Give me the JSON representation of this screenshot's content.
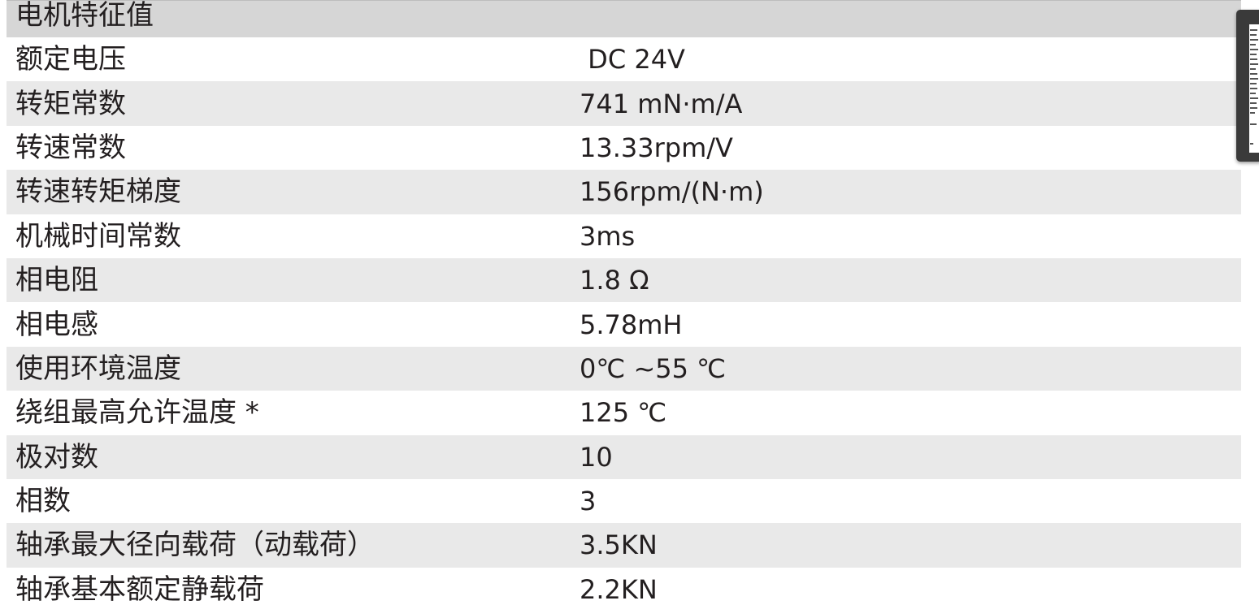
{
  "section_title": "电机特征值",
  "rows": [
    {
      "label": "额定电压",
      "value": " DC 24V"
    },
    {
      "label": "转矩常数",
      "value": "741 mN·m/A"
    },
    {
      "label": "转速常数",
      "value": "13.33rpm/V"
    },
    {
      "label": "转速转矩梯度",
      "value": "156rpm/(N·m)"
    },
    {
      "label": "机械时间常数",
      "value": "3ms"
    },
    {
      "label": "相电阻",
      "value": "1.8 Ω"
    },
    {
      "label": "相电感",
      "value": "5.78mH"
    },
    {
      "label": "使用环境温度",
      "value": "0℃ ~55 ℃"
    },
    {
      "label": "绕组最高允许温度 *",
      "value": "125 ℃"
    },
    {
      "label": "极对数",
      "value": "10"
    },
    {
      "label": "相数",
      "value": "3"
    },
    {
      "label": "轴承最大径向载荷（动载荷）",
      "value": "3.5KN"
    },
    {
      "label": "轴承基本额定静载荷",
      "value": "2.2KN"
    }
  ],
  "colors": {
    "header_bg": "#d6d6d6",
    "stripe_bg": "#e9e9e9",
    "text": "#231f20"
  }
}
